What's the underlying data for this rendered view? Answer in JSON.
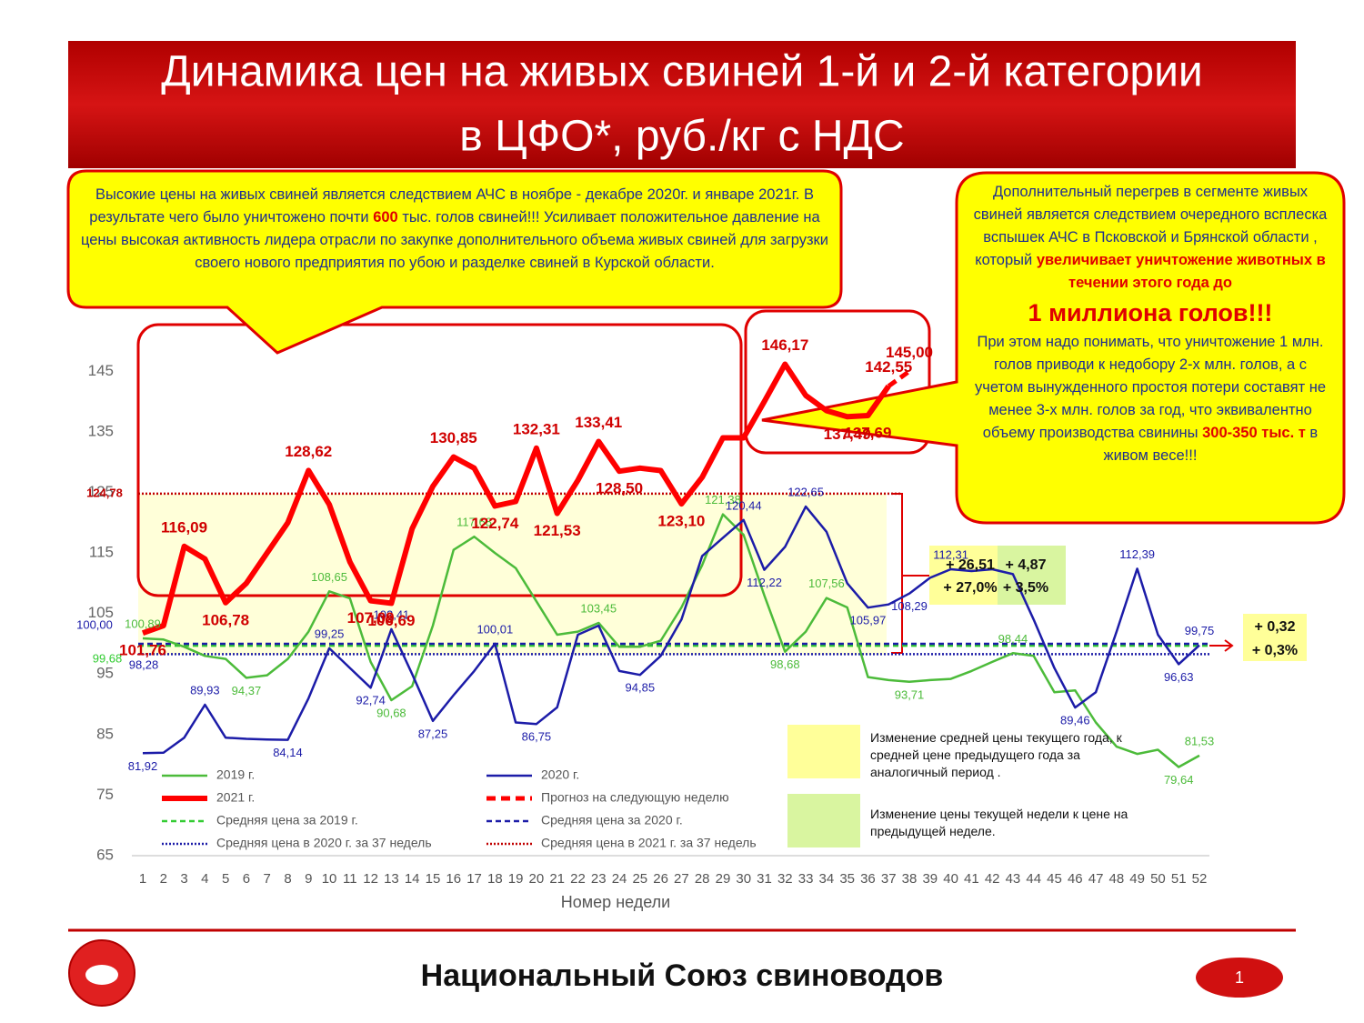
{
  "chart_data": {
    "type": "line",
    "title": [
      "Динамика цен на живых свиней 1-й и 2-й категории",
      "в ЦФО*, руб./кг с НДС"
    ],
    "x_label": "Номер недели",
    "x": [
      1,
      2,
      3,
      4,
      5,
      6,
      7,
      8,
      9,
      10,
      11,
      12,
      13,
      14,
      15,
      16,
      17,
      18,
      19,
      20,
      21,
      22,
      23,
      24,
      25,
      26,
      27,
      28,
      29,
      30,
      31,
      32,
      33,
      34,
      35,
      36,
      37,
      38,
      39,
      40,
      41,
      42,
      43,
      44,
      45,
      46,
      47,
      48,
      49,
      50,
      51,
      52
    ],
    "xlim": [
      1,
      52
    ],
    "ylim": [
      65,
      150
    ],
    "yticks": [
      65,
      75,
      85,
      95,
      105,
      115,
      125,
      135,
      145
    ],
    "grid": false,
    "series": [
      {
        "name": "2019 г.",
        "color": "#4cbb3a",
        "width": 2.5,
        "dash": "none",
        "values": [
          100.89,
          100.7,
          99.5,
          98,
          97.5,
          94.37,
          94.8,
          97.5,
          102,
          108.65,
          107.5,
          97,
          90.68,
          93,
          103,
          115.5,
          117.68,
          115,
          112.5,
          107,
          101.5,
          102,
          103.45,
          99.5,
          99.5,
          100.5,
          106,
          113,
          121.38,
          118,
          108,
          98.68,
          102,
          107.56,
          106,
          94.5,
          94,
          93.71,
          94,
          94.2,
          95.5,
          97,
          98.44,
          98,
          92,
          92.3,
          87,
          83,
          81.8,
          82.5,
          79.64,
          81.53
        ],
        "value_labels": [
          "100,89",
          null,
          null,
          null,
          null,
          "94,37",
          null,
          null,
          null,
          "108,65",
          null,
          null,
          "90,68",
          null,
          null,
          null,
          "117,68",
          null,
          null,
          null,
          null,
          null,
          "103,45",
          null,
          null,
          null,
          null,
          null,
          "121,38",
          null,
          null,
          "98,68",
          null,
          "107,56",
          null,
          null,
          null,
          "93,71",
          null,
          null,
          null,
          null,
          "98,44",
          null,
          null,
          null,
          null,
          null,
          null,
          null,
          "79,64",
          "81,53"
        ]
      },
      {
        "name": "2020 г.",
        "color": "#1c1ca8",
        "width": 2.5,
        "dash": "none",
        "values": [
          81.92,
          82,
          84.5,
          89.93,
          84.5,
          84.3,
          84.2,
          84.14,
          91,
          99.25,
          96,
          92.74,
          102.41,
          95,
          87.25,
          91.5,
          95.5,
          100.01,
          87,
          86.75,
          89.5,
          101.5,
          103,
          95.5,
          94.85,
          98,
          104,
          114.5,
          117.5,
          120.44,
          112.22,
          116,
          122.65,
          118.5,
          110,
          105.97,
          106.5,
          108.29,
          110.9,
          112.31,
          112,
          112.3,
          111.5,
          104,
          96,
          89.46,
          92,
          102,
          112.39,
          101.5,
          96.63,
          99.75
        ],
        "value_labels": [
          "81,92",
          null,
          null,
          "89,93",
          null,
          null,
          null,
          "84,14",
          null,
          "99,25",
          null,
          "92,74",
          "102,41",
          null,
          "87,25",
          null,
          null,
          "100,01",
          null,
          "86,75",
          null,
          null,
          null,
          null,
          "94,85",
          null,
          null,
          null,
          null,
          "120,44",
          "112,22",
          null,
          "122,65",
          null,
          null,
          "105,97",
          null,
          "108,29",
          null,
          "112,31",
          null,
          null,
          null,
          null,
          null,
          "89,46",
          null,
          null,
          "112,39",
          null,
          "96,63",
          "99,75"
        ]
      },
      {
        "name": "2021 г.",
        "color": "#ff0000",
        "width": 6,
        "dash": "none",
        "values": [
          101.76,
          103,
          116.09,
          114,
          106.78,
          110,
          115,
          120,
          128.62,
          123,
          113.5,
          107.09,
          106.69,
          119,
          126,
          130.85,
          129,
          122.74,
          123.5,
          132.31,
          121.53,
          127,
          133.41,
          128.5,
          129,
          128.6,
          123.1,
          127.5,
          134,
          134,
          140,
          146.17,
          141,
          138.5,
          137.49,
          137.69,
          142.55,
          null,
          null,
          null,
          null,
          null,
          null,
          null,
          null,
          null,
          null,
          null,
          null,
          null,
          null,
          null
        ],
        "value_labels": [
          "101,76",
          null,
          "116,09",
          null,
          "106,78",
          null,
          null,
          null,
          "128,62",
          null,
          null,
          "107,09",
          "106,69",
          null,
          null,
          "130,85",
          null,
          "122,74",
          null,
          "132,31",
          "121,53",
          null,
          "133,41",
          "128,50",
          null,
          null,
          "123,10",
          null,
          null,
          null,
          null,
          "146,17",
          null,
          null,
          "137,49",
          "137,69",
          "142,55",
          null,
          null,
          null,
          null,
          null,
          null,
          null,
          null,
          null,
          null,
          null,
          null,
          null,
          null,
          null
        ]
      },
      {
        "name": "Прогноз на следующую неделю",
        "color": "#ff0000",
        "width": 5,
        "dash": "10 6",
        "values": [
          null,
          null,
          null,
          null,
          null,
          null,
          null,
          null,
          null,
          null,
          null,
          null,
          null,
          null,
          null,
          null,
          null,
          null,
          null,
          null,
          null,
          null,
          null,
          null,
          null,
          null,
          null,
          null,
          null,
          null,
          null,
          null,
          null,
          null,
          null,
          null,
          142.55,
          145.0,
          null,
          null,
          null,
          null,
          null,
          null,
          null,
          null,
          null,
          null,
          null,
          null,
          null,
          null
        ],
        "value_labels": [
          null,
          null,
          null,
          null,
          null,
          null,
          null,
          null,
          null,
          null,
          null,
          null,
          null,
          null,
          null,
          null,
          null,
          null,
          null,
          null,
          null,
          null,
          null,
          null,
          null,
          null,
          null,
          null,
          null,
          null,
          null,
          null,
          null,
          null,
          null,
          null,
          null,
          "145,00",
          null,
          null,
          null,
          null,
          null,
          null,
          null,
          null,
          null,
          null,
          null,
          null,
          null,
          null
        ]
      }
    ],
    "averages": [
      {
        "name": "Средняя цена за 2019 г.",
        "color": "#33cc33",
        "dash": "6 4",
        "value": 99.68,
        "value_label": "99,68"
      },
      {
        "name": "Средняя цена за 2020 г.",
        "color": "#1c1ca8",
        "dash": "6 4",
        "value": 100.0,
        "value_label": "100,00"
      },
      {
        "name": "Средняя цена в 2020 г. за 37 недель",
        "color": "#1c1ca8",
        "dash": "2 2",
        "value": 98.28,
        "value_label": "98,28"
      },
      {
        "name": "Средняя цена в 2021 г. за 37 недель",
        "color": "#c00000",
        "dash": "2 2",
        "value": 124.78,
        "value_label": "124,78"
      }
    ],
    "annotations": [
      "+ 26,51",
      "+ 27,0%",
      "+ 4,87",
      "+ 3,5%",
      "+ 0,32",
      "+ 0,3%"
    ],
    "legend_boxes": [
      "Изменение средней цены текущего года, к средней цене предыдущего года за аналогичный период .",
      "Изменение цены текущей недели к цене на предыдущей неделе."
    ]
  },
  "callouts": [
    {
      "parts": [
        "Высокие цены на живых свиней является следствием АЧС в ноябре - декабре 2020г. и январе 2021г. В результате чего было уничтожено почти ",
        "600",
        " тыс. голов свиней!!!  Усиливает положительное давление на цены высокая активность лидера отрасли по закупке дополнительного объема живых свиней для загрузки своего нового предприятия  по убою и разделке свиней в Курской области."
      ]
    },
    {
      "parts": [
        "Дополнительный перегрев в сегменте живых свиней является следствием очередного всплеска вспышек АЧС в Псковской  и Брянской области , который ",
        "увеличивает уничтожение животных в течении этого года до",
        "1 миллиона голов!!!",
        "При этом надо понимать, что уничтожение 1 млн. голов приводи к недобору 2-х млн. голов, а с учетом вынужденного простоя потери составят не менее 3-х млн. голов за год, что эквивалентно объему производства свинины ",
        "300-350 тыс. т",
        " в живом весе!!!"
      ]
    }
  ],
  "footer": {
    "org": "Национальный Союз свиноводов",
    "page": "1"
  }
}
